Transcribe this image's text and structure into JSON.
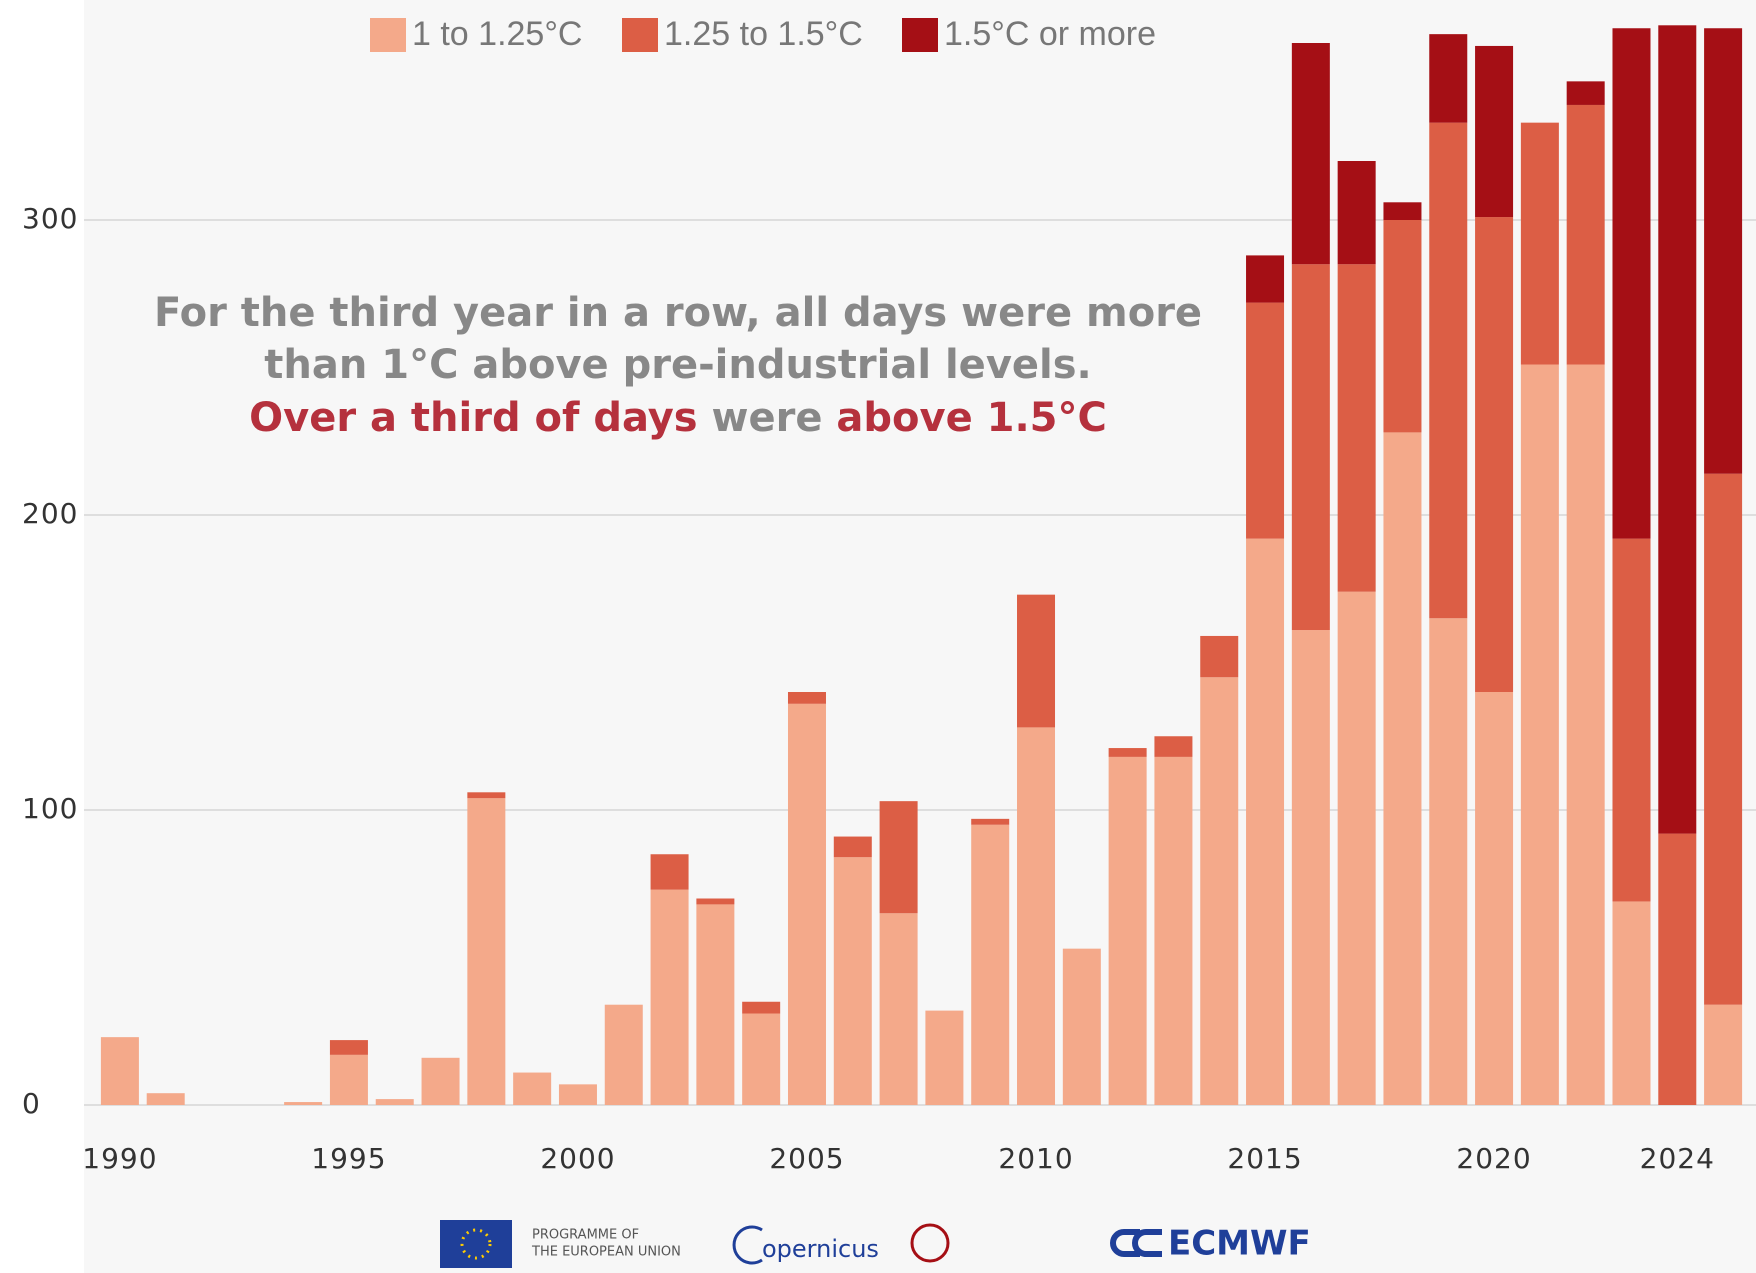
{
  "chart_data": {
    "type": "stacked-bar",
    "categories": [
      "1990",
      null,
      null,
      null,
      null,
      "1995",
      null,
      null,
      null,
      null,
      "2000",
      null,
      null,
      null,
      null,
      "2005",
      null,
      null,
      null,
      null,
      "2010",
      null,
      null,
      null,
      null,
      "2015",
      null,
      null,
      null,
      null,
      "2020",
      null,
      null,
      null,
      "2024",
      null
    ],
    "series": [
      {
        "name": "1 to 1.25°C",
        "color": "#f4a98a",
        "values": [
          23,
          4,
          0,
          0,
          1,
          17,
          2,
          16,
          104,
          11,
          7,
          34,
          73,
          68,
          31,
          136,
          84,
          65,
          32,
          95,
          128,
          53,
          118,
          118,
          145,
          192,
          161,
          174,
          228,
          165,
          140,
          251,
          251,
          69,
          0,
          34
        ]
      },
      {
        "name": "1.25 to 1.5°C",
        "color": "#dc5e45",
        "values": [
          0,
          0,
          0,
          0,
          0,
          5,
          0,
          0,
          2,
          0,
          0,
          0,
          12,
          2,
          4,
          4,
          7,
          38,
          0,
          2,
          45,
          0,
          3,
          7,
          14,
          80,
          124,
          111,
          72,
          168,
          161,
          82,
          88,
          123,
          92,
          180
        ]
      },
      {
        "name": "1.5°C or more",
        "color": "#a50f15",
        "values": [
          0,
          0,
          0,
          0,
          0,
          0,
          0,
          0,
          0,
          0,
          0,
          0,
          0,
          0,
          0,
          0,
          0,
          0,
          0,
          0,
          0,
          0,
          0,
          0,
          0,
          16,
          75,
          35,
          6,
          30,
          58,
          0,
          8,
          173,
          274,
          151
        ]
      }
    ],
    "ylim": [
      0,
      370
    ],
    "yticks": [
      0,
      100,
      200,
      300
    ],
    "grid": true,
    "annotation": {
      "line1": "For the third year in a row, all days were more",
      "line2": "than 1°C above pre-industrial levels.",
      "line3": [
        "Over a third of days",
        " were ",
        "above 1.5°C"
      ]
    }
  },
  "footer": {
    "eu_line1": "PROGRAMME OF",
    "eu_line2": "THE EUROPEAN UNION",
    "copernicus": "opernicus",
    "ecmwf": "ECMWF"
  }
}
